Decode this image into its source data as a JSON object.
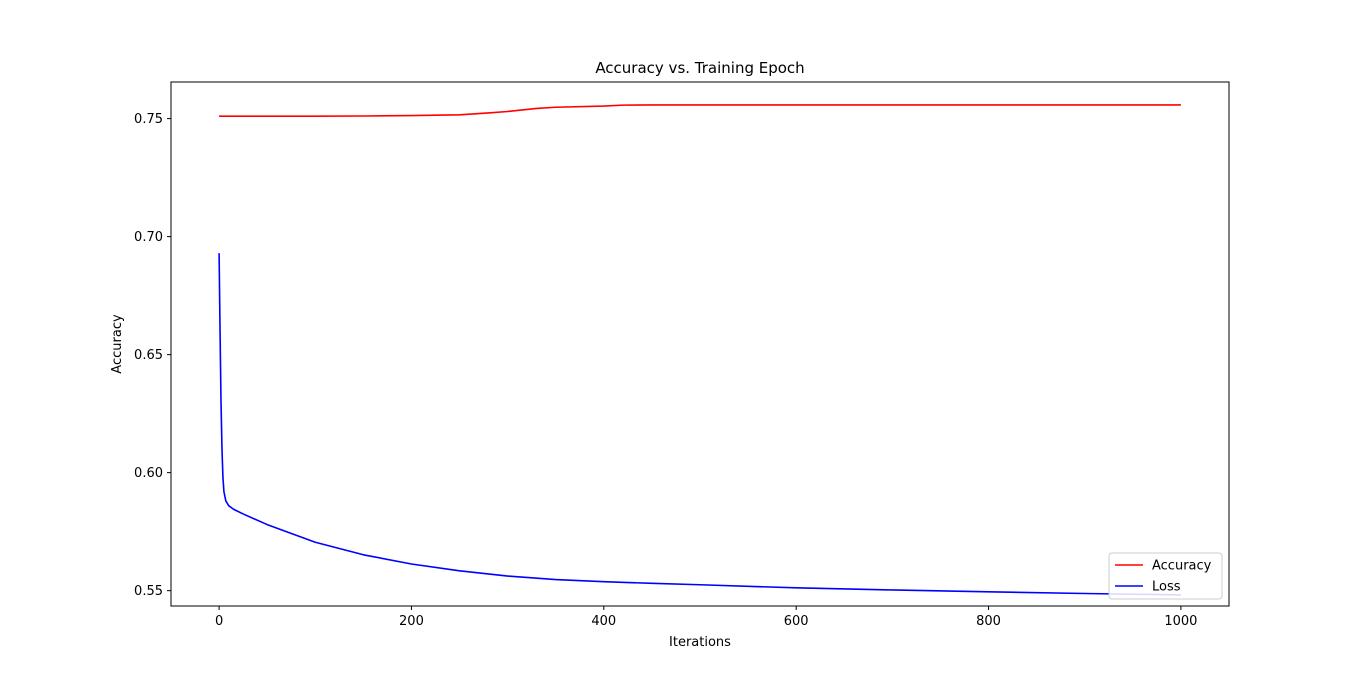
{
  "chart_data": {
    "type": "line",
    "title": "Accuracy vs. Training Epoch",
    "xlabel": "Iterations",
    "ylabel": "Accuracy",
    "xlim": [
      -50,
      1050
    ],
    "ylim": [
      0.5435,
      0.7655
    ],
    "xticks": [
      0,
      200,
      400,
      600,
      800,
      1000
    ],
    "yticks": [
      0.55,
      0.6,
      0.65,
      0.7,
      0.75
    ],
    "ytick_labels": [
      "0.55",
      "0.60",
      "0.65",
      "0.70",
      "0.75"
    ],
    "grid": false,
    "legend_position": "lower-right",
    "series": [
      {
        "name": "Accuracy",
        "color": "#ff0000",
        "points": [
          [
            0,
            0.751
          ],
          [
            50,
            0.751
          ],
          [
            100,
            0.751
          ],
          [
            150,
            0.7511
          ],
          [
            200,
            0.7513
          ],
          [
            250,
            0.7516
          ],
          [
            280,
            0.7524
          ],
          [
            300,
            0.753
          ],
          [
            330,
            0.7543
          ],
          [
            350,
            0.7548
          ],
          [
            400,
            0.7553
          ],
          [
            420,
            0.7557
          ],
          [
            450,
            0.7558
          ],
          [
            500,
            0.7558
          ],
          [
            600,
            0.7558
          ],
          [
            700,
            0.7558
          ],
          [
            800,
            0.7558
          ],
          [
            900,
            0.7558
          ],
          [
            1000,
            0.7558
          ]
        ]
      },
      {
        "name": "Loss",
        "color": "#0000ff",
        "points": [
          [
            0,
            0.693
          ],
          [
            1,
            0.66
          ],
          [
            2,
            0.63
          ],
          [
            3,
            0.61
          ],
          [
            4,
            0.598
          ],
          [
            5,
            0.592
          ],
          [
            7,
            0.588
          ],
          [
            10,
            0.586
          ],
          [
            15,
            0.5845
          ],
          [
            25,
            0.5825
          ],
          [
            50,
            0.578
          ],
          [
            100,
            0.5705
          ],
          [
            150,
            0.5652
          ],
          [
            200,
            0.5613
          ],
          [
            250,
            0.5584
          ],
          [
            300,
            0.5562
          ],
          [
            350,
            0.5547
          ],
          [
            400,
            0.5538
          ],
          [
            450,
            0.5531
          ],
          [
            500,
            0.5525
          ],
          [
            600,
            0.5512
          ],
          [
            700,
            0.5503
          ],
          [
            800,
            0.5495
          ],
          [
            900,
            0.5488
          ],
          [
            1000,
            0.5482
          ]
        ]
      }
    ]
  }
}
